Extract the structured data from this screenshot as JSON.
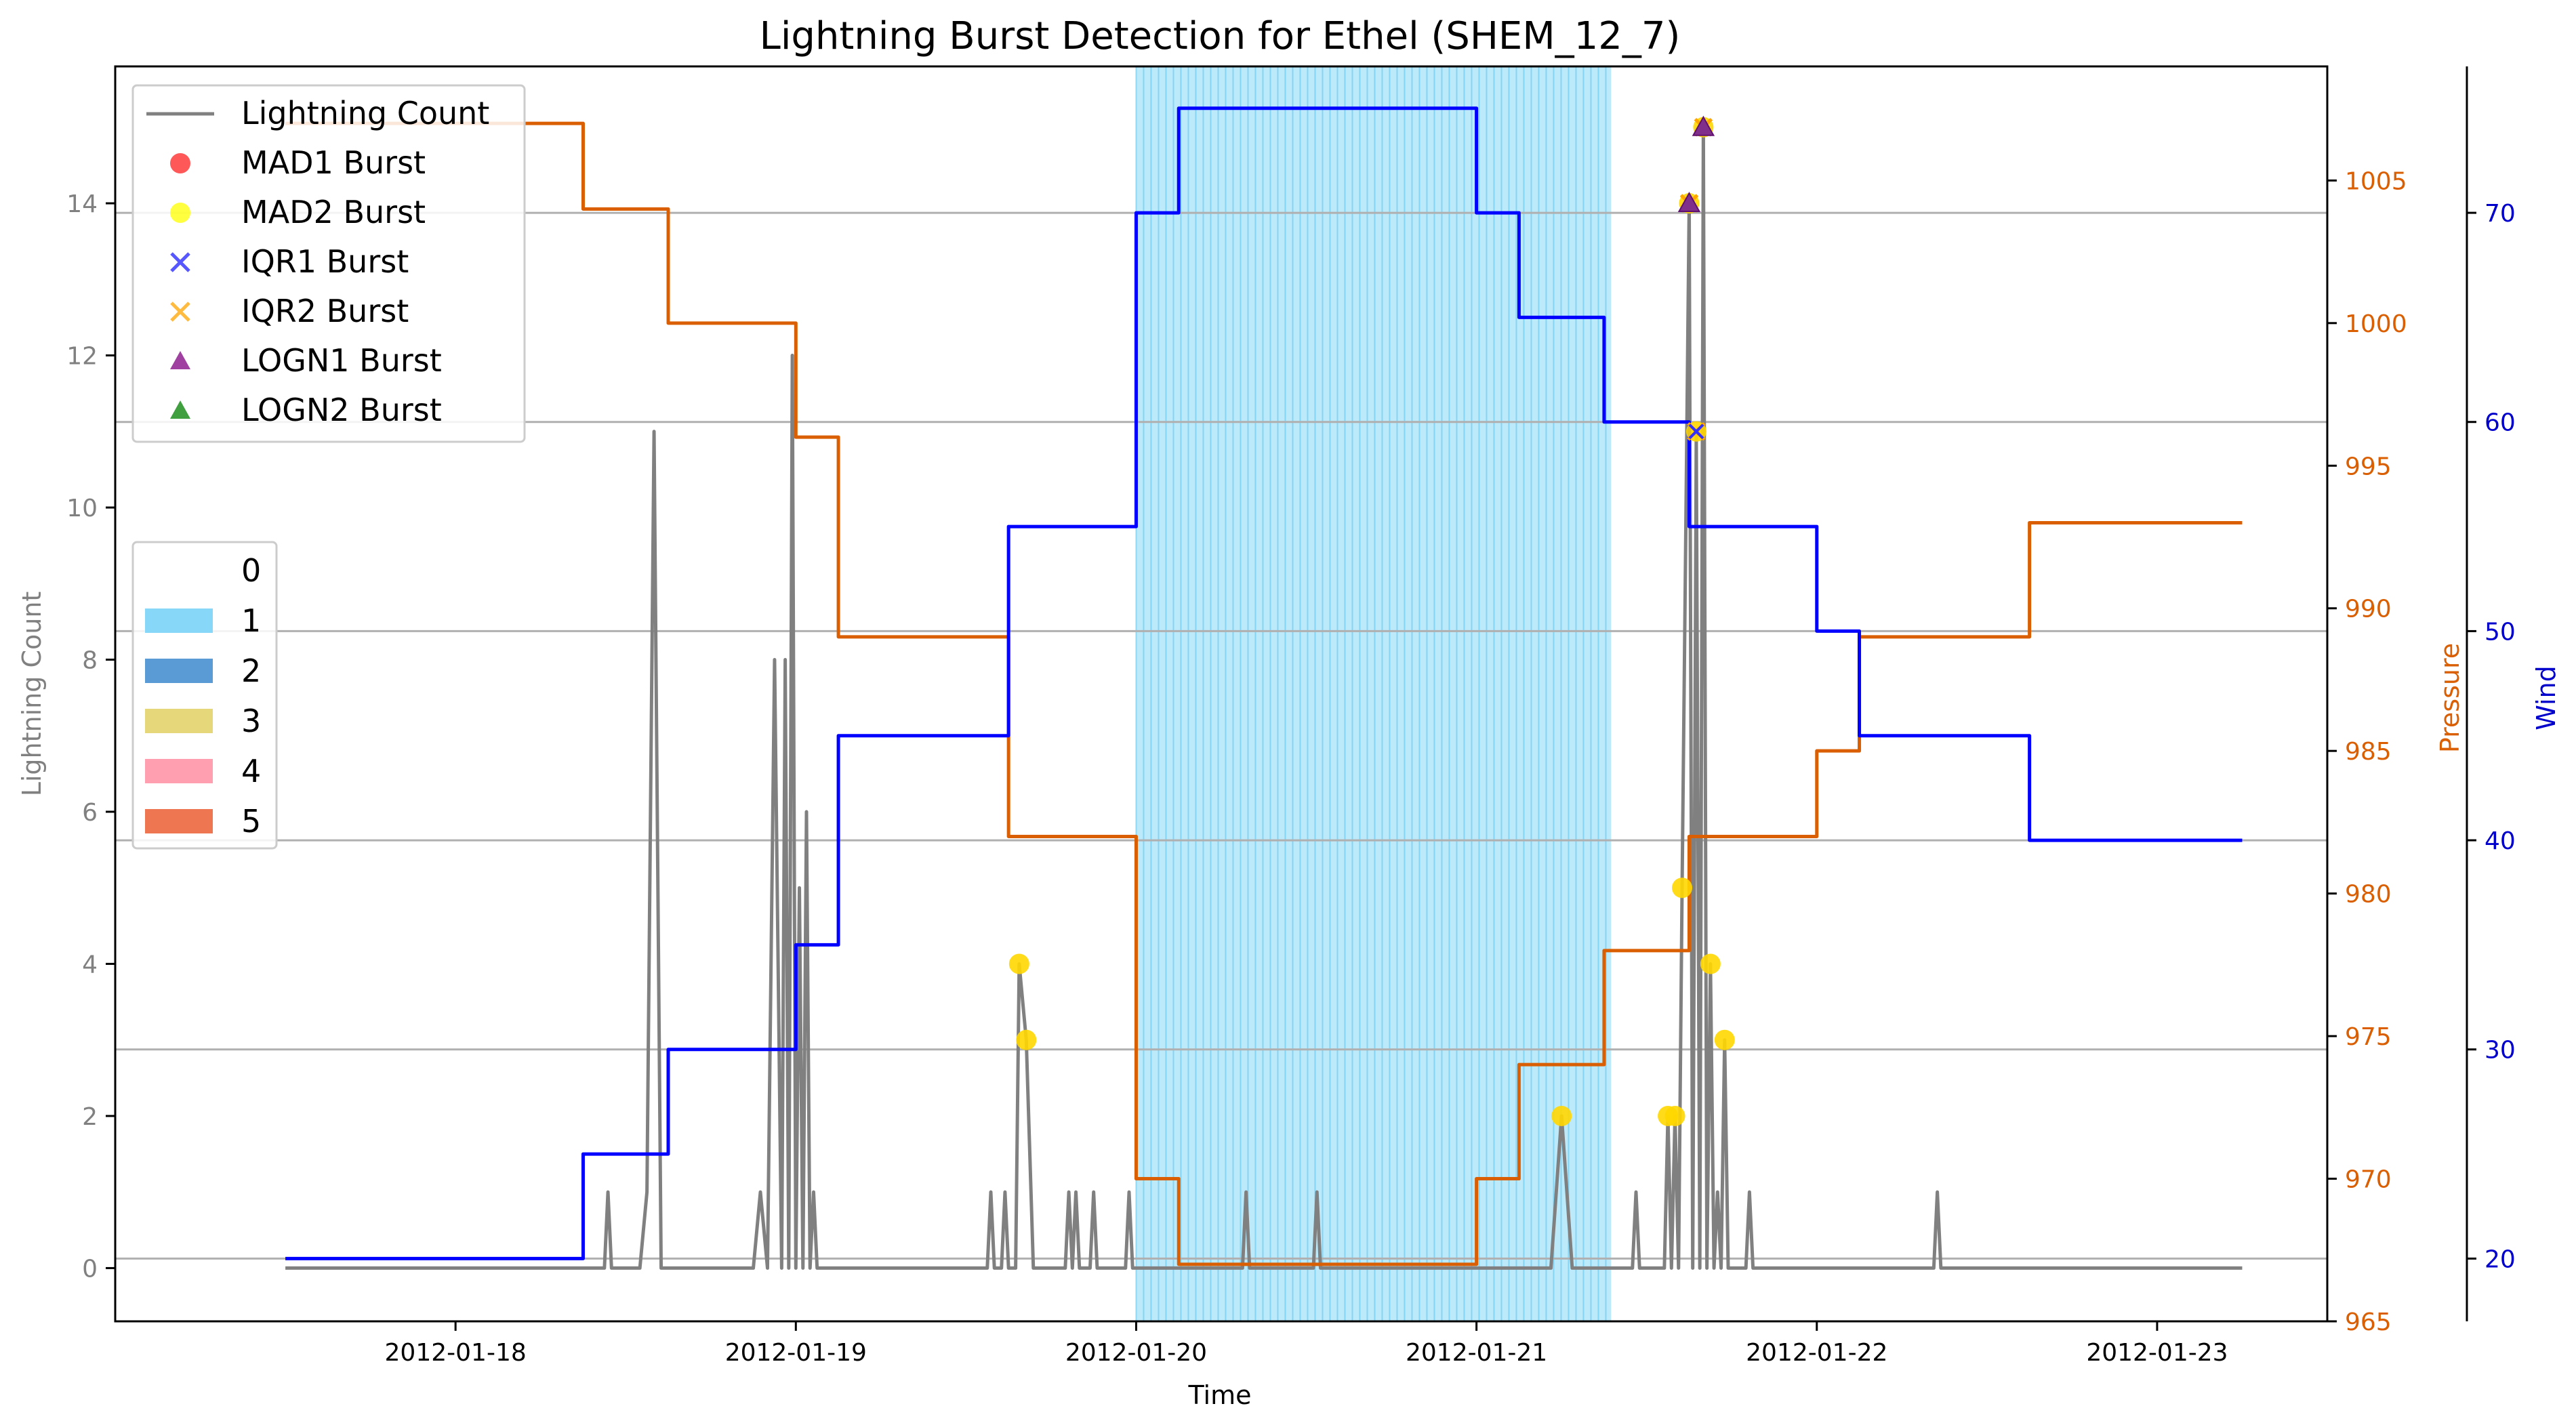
{
  "chart_data": {
    "type": "line",
    "title": "Lightning Burst Detection for Ethel (SHEM_12_7)",
    "xlabel": "Time",
    "x_ticks": [
      "2012-01-18",
      "2012-01-19",
      "2012-01-20",
      "2012-01-21",
      "2012-01-22",
      "2012-01-23"
    ],
    "xlim": [
      "2012-01-17T00:00",
      "2012-01-23T12:00"
    ],
    "axes": {
      "lightning": {
        "label": "Lightning Count",
        "ylim": [
          -0.7,
          15.8
        ],
        "ticks": [
          0,
          2,
          4,
          6,
          8,
          10,
          12,
          14
        ],
        "color": "#808080"
      },
      "pressure": {
        "label": "Pressure",
        "ylim": [
          965,
          1009
        ],
        "ticks": [
          965,
          970,
          975,
          980,
          985,
          990,
          995,
          1000,
          1005
        ],
        "color": "#d95f02"
      },
      "wind": {
        "label": "Wind",
        "ylim": [
          17,
          77
        ],
        "ticks": [
          20,
          30,
          40,
          50,
          60,
          70
        ],
        "color": "#0000cc"
      }
    },
    "grid": "horizontal lines at wind ticks",
    "legend_series": {
      "position": "upper-left",
      "entries": [
        {
          "label": "Lightning Count",
          "marker": "line",
          "color": "#808080"
        },
        {
          "label": "MAD1 Burst",
          "marker": "circle",
          "color": "#ff2020"
        },
        {
          "label": "MAD2 Burst",
          "marker": "circle",
          "color": "#ffff00"
        },
        {
          "label": "IQR1 Burst",
          "marker": "x",
          "color": "#2020ff"
        },
        {
          "label": "IQR2 Burst",
          "marker": "x",
          "color": "#ffa500"
        },
        {
          "label": "LOGN1 Burst",
          "marker": "triangle",
          "color": "#800080"
        },
        {
          "label": "LOGN2 Burst",
          "marker": "triangle",
          "color": "#008000"
        }
      ]
    },
    "legend_category": {
      "position": "center-left",
      "entries": [
        {
          "label": "0",
          "color": "#ffffff"
        },
        {
          "label": "1",
          "color": "#87d8f8"
        },
        {
          "label": "2",
          "color": "#5b9bd5"
        },
        {
          "label": "3",
          "color": "#e6d87a"
        },
        {
          "label": "4",
          "color": "#ff9fb0"
        },
        {
          "label": "5",
          "color": "#ee7650"
        }
      ]
    },
    "category_span": {
      "category": "1",
      "start": "2012-01-20T00:00",
      "end": "2012-01-21T09:30"
    },
    "series": [
      {
        "name": "Lightning Count",
        "axis": "lightning",
        "color": "#808080",
        "points": [
          [
            "2012-01-17T12:00",
            0
          ],
          [
            "2012-01-18T10:30",
            0
          ],
          [
            "2012-01-18T10:45",
            1
          ],
          [
            "2012-01-18T11:00",
            0
          ],
          [
            "2012-01-18T13:00",
            0
          ],
          [
            "2012-01-18T13:30",
            1
          ],
          [
            "2012-01-18T14:00",
            11
          ],
          [
            "2012-01-18T14:30",
            0
          ],
          [
            "2012-01-18T21:00",
            0
          ],
          [
            "2012-01-18T21:30",
            1
          ],
          [
            "2012-01-18T22:00",
            0
          ],
          [
            "2012-01-18T22:30",
            8
          ],
          [
            "2012-01-18T23:00",
            0
          ],
          [
            "2012-01-18T23:15",
            8
          ],
          [
            "2012-01-18T23:30",
            0
          ],
          [
            "2012-01-18T23:45",
            12
          ],
          [
            "2012-01-19T00:00",
            0
          ],
          [
            "2012-01-19T00:15",
            5
          ],
          [
            "2012-01-19T00:30",
            0
          ],
          [
            "2012-01-19T00:45",
            6
          ],
          [
            "2012-01-19T01:00",
            0
          ],
          [
            "2012-01-19T01:15",
            1
          ],
          [
            "2012-01-19T01:30",
            0
          ],
          [
            "2012-01-19T13:30",
            0
          ],
          [
            "2012-01-19T13:45",
            1
          ],
          [
            "2012-01-19T14:00",
            0
          ],
          [
            "2012-01-19T14:30",
            0
          ],
          [
            "2012-01-19T14:45",
            1
          ],
          [
            "2012-01-19T15:00",
            0
          ],
          [
            "2012-01-19T15:30",
            0
          ],
          [
            "2012-01-19T15:45",
            4
          ],
          [
            "2012-01-19T16:15",
            3
          ],
          [
            "2012-01-19T16:45",
            0
          ],
          [
            "2012-01-19T19:00",
            0
          ],
          [
            "2012-01-19T19:15",
            1
          ],
          [
            "2012-01-19T19:30",
            0
          ],
          [
            "2012-01-19T19:45",
            1
          ],
          [
            "2012-01-19T20:00",
            0
          ],
          [
            "2012-01-19T20:45",
            0
          ],
          [
            "2012-01-19T21:00",
            1
          ],
          [
            "2012-01-19T21:15",
            0
          ],
          [
            "2012-01-19T23:15",
            0
          ],
          [
            "2012-01-19T23:30",
            1
          ],
          [
            "2012-01-19T23:45",
            0
          ],
          [
            "2012-01-20T07:30",
            0
          ],
          [
            "2012-01-20T07:45",
            1
          ],
          [
            "2012-01-20T08:00",
            0
          ],
          [
            "2012-01-20T12:30",
            0
          ],
          [
            "2012-01-20T12:45",
            1
          ],
          [
            "2012-01-20T13:00",
            0
          ],
          [
            "2012-01-21T05:15",
            0
          ],
          [
            "2012-01-21T06:00",
            2
          ],
          [
            "2012-01-21T06:45",
            0
          ],
          [
            "2012-01-21T11:00",
            0
          ],
          [
            "2012-01-21T11:15",
            1
          ],
          [
            "2012-01-21T11:30",
            0
          ],
          [
            "2012-01-21T13:15",
            0
          ],
          [
            "2012-01-21T13:30",
            2
          ],
          [
            "2012-01-21T13:45",
            0
          ],
          [
            "2012-01-21T14:00",
            2
          ],
          [
            "2012-01-21T14:15",
            0
          ],
          [
            "2012-01-21T14:30",
            5
          ],
          [
            "2012-01-21T15:00",
            14
          ],
          [
            "2012-01-21T15:15",
            0
          ],
          [
            "2012-01-21T15:30",
            11
          ],
          [
            "2012-01-21T15:45",
            0
          ],
          [
            "2012-01-21T16:00",
            15
          ],
          [
            "2012-01-21T16:15",
            0
          ],
          [
            "2012-01-21T16:30",
            4
          ],
          [
            "2012-01-21T16:45",
            0
          ],
          [
            "2012-01-21T17:00",
            1
          ],
          [
            "2012-01-21T17:15",
            0
          ],
          [
            "2012-01-21T17:30",
            3
          ],
          [
            "2012-01-21T17:45",
            0
          ],
          [
            "2012-01-21T19:00",
            0
          ],
          [
            "2012-01-21T19:15",
            1
          ],
          [
            "2012-01-21T19:30",
            0
          ],
          [
            "2012-01-22T08:15",
            0
          ],
          [
            "2012-01-22T08:30",
            1
          ],
          [
            "2012-01-22T08:45",
            0
          ],
          [
            "2012-01-23T06:00",
            0
          ]
        ]
      },
      {
        "name": "Pressure",
        "axis": "pressure",
        "color": "#d95f02",
        "step": true,
        "points": [
          [
            "2012-01-17T12:00",
            1007
          ],
          [
            "2012-01-18T09:00",
            1004
          ],
          [
            "2012-01-18T15:00",
            1000
          ],
          [
            "2012-01-19T00:00",
            996
          ],
          [
            "2012-01-19T03:00",
            989
          ],
          [
            "2012-01-19T15:00",
            982
          ],
          [
            "2012-01-20T00:00",
            970
          ],
          [
            "2012-01-20T03:00",
            967
          ],
          [
            "2012-01-21T00:00",
            970
          ],
          [
            "2012-01-21T03:00",
            974
          ],
          [
            "2012-01-21T09:00",
            978
          ],
          [
            "2012-01-21T15:00",
            982
          ],
          [
            "2012-01-22T00:00",
            985
          ],
          [
            "2012-01-22T03:00",
            989
          ],
          [
            "2012-01-22T15:00",
            993
          ],
          [
            "2012-01-23T06:00",
            993
          ]
        ]
      },
      {
        "name": "Wind",
        "axis": "wind",
        "color": "#0000ff",
        "step": true,
        "points": [
          [
            "2012-01-17T12:00",
            20
          ],
          [
            "2012-01-18T09:00",
            25
          ],
          [
            "2012-01-18T15:00",
            30
          ],
          [
            "2012-01-19T00:00",
            35
          ],
          [
            "2012-01-19T03:00",
            45
          ],
          [
            "2012-01-19T15:00",
            55
          ],
          [
            "2012-01-20T00:00",
            70
          ],
          [
            "2012-01-20T03:00",
            75
          ],
          [
            "2012-01-21T00:00",
            70
          ],
          [
            "2012-01-21T03:00",
            65
          ],
          [
            "2012-01-21T09:00",
            60
          ],
          [
            "2012-01-21T15:00",
            55
          ],
          [
            "2012-01-22T00:00",
            50
          ],
          [
            "2012-01-22T03:00",
            45
          ],
          [
            "2012-01-22T15:00",
            40
          ],
          [
            "2012-01-23T06:00",
            40
          ]
        ]
      }
    ],
    "bursts": {
      "MAD2": [
        [
          "2012-01-19T15:45",
          4
        ],
        [
          "2012-01-19T16:15",
          3
        ],
        [
          "2012-01-21T06:00",
          2
        ],
        [
          "2012-01-21T13:30",
          2
        ],
        [
          "2012-01-21T14:00",
          2
        ],
        [
          "2012-01-21T14:30",
          5
        ],
        [
          "2012-01-21T15:00",
          14
        ],
        [
          "2012-01-21T15:30",
          11
        ],
        [
          "2012-01-21T16:00",
          15
        ],
        [
          "2012-01-21T16:30",
          4
        ],
        [
          "2012-01-21T17:30",
          3
        ]
      ],
      "IQR1": [
        [
          "2012-01-21T15:30",
          11
        ]
      ],
      "IQR2": [
        [
          "2012-01-21T15:00",
          14
        ],
        [
          "2012-01-21T15:30",
          11
        ],
        [
          "2012-01-21T16:00",
          15
        ]
      ],
      "LOGN1": [
        [
          "2012-01-21T15:00",
          14
        ],
        [
          "2012-01-21T16:00",
          15
        ]
      ]
    }
  }
}
